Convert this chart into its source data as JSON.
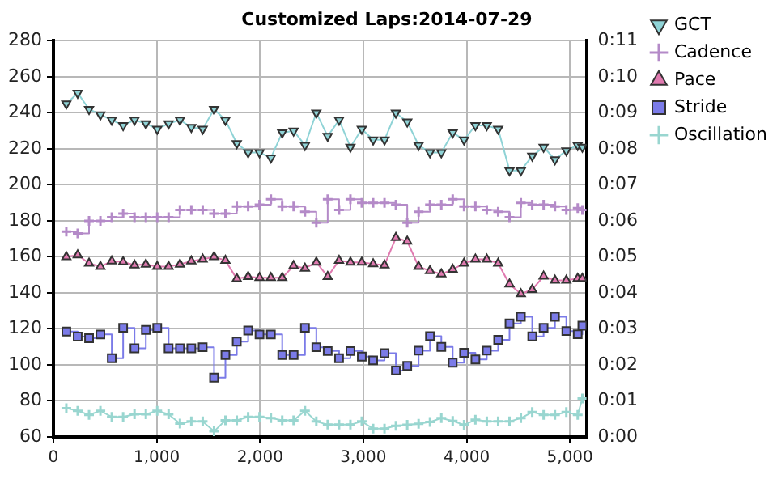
{
  "chart_data": {
    "type": "line",
    "title": "Customized Laps:2014-07-29",
    "x": [
      125,
      235,
      345,
      455,
      565,
      675,
      785,
      895,
      1005,
      1115,
      1225,
      1335,
      1445,
      1555,
      1665,
      1775,
      1885,
      1995,
      2105,
      2215,
      2325,
      2435,
      2545,
      2655,
      2765,
      2875,
      2985,
      3095,
      3205,
      3315,
      3425,
      3535,
      3645,
      3755,
      3865,
      3975,
      4085,
      4195,
      4305,
      4415,
      4525,
      4635,
      4745,
      4855,
      4965,
      5075,
      5120
    ],
    "series": [
      {
        "name": "GCT",
        "color": "#8fd3d6",
        "marker": "triangle-down",
        "values": [
          245,
          251,
          242,
          239,
          236,
          233,
          236,
          234,
          231,
          234,
          236,
          232,
          231,
          242,
          236,
          223,
          218,
          218,
          215,
          229,
          230,
          222,
          240,
          227,
          236,
          221,
          231,
          225,
          225,
          240,
          235,
          222,
          218,
          218,
          229,
          225,
          233,
          233,
          231,
          208,
          208,
          216,
          221,
          214,
          219,
          222,
          221
        ]
      },
      {
        "name": "Cadence",
        "type": "step",
        "color": "#b48ac8",
        "marker": "cross",
        "values": [
          174,
          173,
          180,
          180,
          182,
          184,
          182,
          182,
          182,
          182,
          186,
          186,
          186,
          184,
          184,
          188,
          188,
          189,
          192,
          188,
          188,
          185,
          179,
          192,
          186,
          192,
          190,
          190,
          190,
          189,
          179,
          185,
          189,
          189,
          192,
          188,
          188,
          186,
          185,
          182,
          190,
          189,
          189,
          188,
          186,
          187,
          186
        ]
      },
      {
        "name": "Pace",
        "color": "#e07ab0",
        "marker": "triangle",
        "axis": "y2",
        "values": [
          5.0,
          5.05,
          4.82,
          4.73,
          4.88,
          4.86,
          4.77,
          4.79,
          4.73,
          4.73,
          4.79,
          4.88,
          4.93,
          5.0,
          4.9,
          4.39,
          4.45,
          4.42,
          4.42,
          4.42,
          4.75,
          4.68,
          4.85,
          4.45,
          4.9,
          4.85,
          4.85,
          4.8,
          4.77,
          5.53,
          5.43,
          4.73,
          4.61,
          4.52,
          4.65,
          4.82,
          4.93,
          4.93,
          4.82,
          4.24,
          3.97,
          4.09,
          4.46,
          4.35,
          4.35,
          4.4,
          4.4
        ]
      },
      {
        "name": "Stride",
        "type": "step",
        "color": "#7b7be8",
        "marker": "square",
        "values": [
          118.5,
          115.7,
          114.8,
          116.9,
          103.7,
          120.6,
          109.2,
          119.4,
          120.6,
          109.2,
          109.2,
          109.2,
          109.8,
          92.9,
          105.5,
          112.9,
          119.1,
          116.9,
          116.9,
          105.5,
          105.5,
          120.6,
          109.8,
          107.7,
          103.7,
          107.7,
          104.6,
          102.5,
          106.5,
          96.9,
          99.4,
          107.9,
          116,
          110,
          101.2,
          106.7,
          103,
          107.9,
          113.9,
          123,
          126.7,
          115.8,
          120.6,
          126.7,
          118.8,
          117,
          121.8
        ]
      },
      {
        "name": "Oscillation",
        "color": "#99d6d0",
        "marker": "cross",
        "values": [
          76,
          74.5,
          72.3,
          74.5,
          71.1,
          71.1,
          72.6,
          72.6,
          74.5,
          72.6,
          67.4,
          68.6,
          68.6,
          63.1,
          69.2,
          69.2,
          71.1,
          71.1,
          70.5,
          69.2,
          69.2,
          74.5,
          68.6,
          66.8,
          66.8,
          66.8,
          68.6,
          64.6,
          64.6,
          66.2,
          66.7,
          67.3,
          68.3,
          70.4,
          68.9,
          66.7,
          69.5,
          68.6,
          68.6,
          68.6,
          70.4,
          73.8,
          72.2,
          72.2,
          73.8,
          72.2,
          81.4
        ]
      }
    ],
    "xlim": [
      0,
      5160
    ],
    "xticks": [
      0,
      {
        "value": 1000,
        "label": "1,000"
      },
      {
        "value": 2000,
        "label": "2,000"
      },
      {
        "value": 3000,
        "label": "3,000"
      },
      {
        "value": 4000,
        "label": "4,000"
      },
      {
        "value": 5000,
        "label": "5,000"
      }
    ],
    "ylim": [
      60,
      280
    ],
    "yticks": [
      60,
      80,
      100,
      120,
      140,
      160,
      180,
      200,
      220,
      240,
      260,
      280
    ],
    "y2lim": [
      0,
      11
    ],
    "y2ticks": [
      {
        "value": 0,
        "label": "0:00"
      },
      {
        "value": 1,
        "label": "0:01"
      },
      {
        "value": 2,
        "label": "0:02"
      },
      {
        "value": 3,
        "label": "0:03"
      },
      {
        "value": 4,
        "label": "0:04"
      },
      {
        "value": 5,
        "label": "0:05"
      },
      {
        "value": 6,
        "label": "0:06"
      },
      {
        "value": 7,
        "label": "0:07"
      },
      {
        "value": 8,
        "label": "0:08"
      },
      {
        "value": 9,
        "label": "0:09"
      },
      {
        "value": 10,
        "label": "0:10"
      },
      {
        "value": 11,
        "label": "0:11"
      }
    ],
    "grid": true,
    "legend": "top right"
  }
}
